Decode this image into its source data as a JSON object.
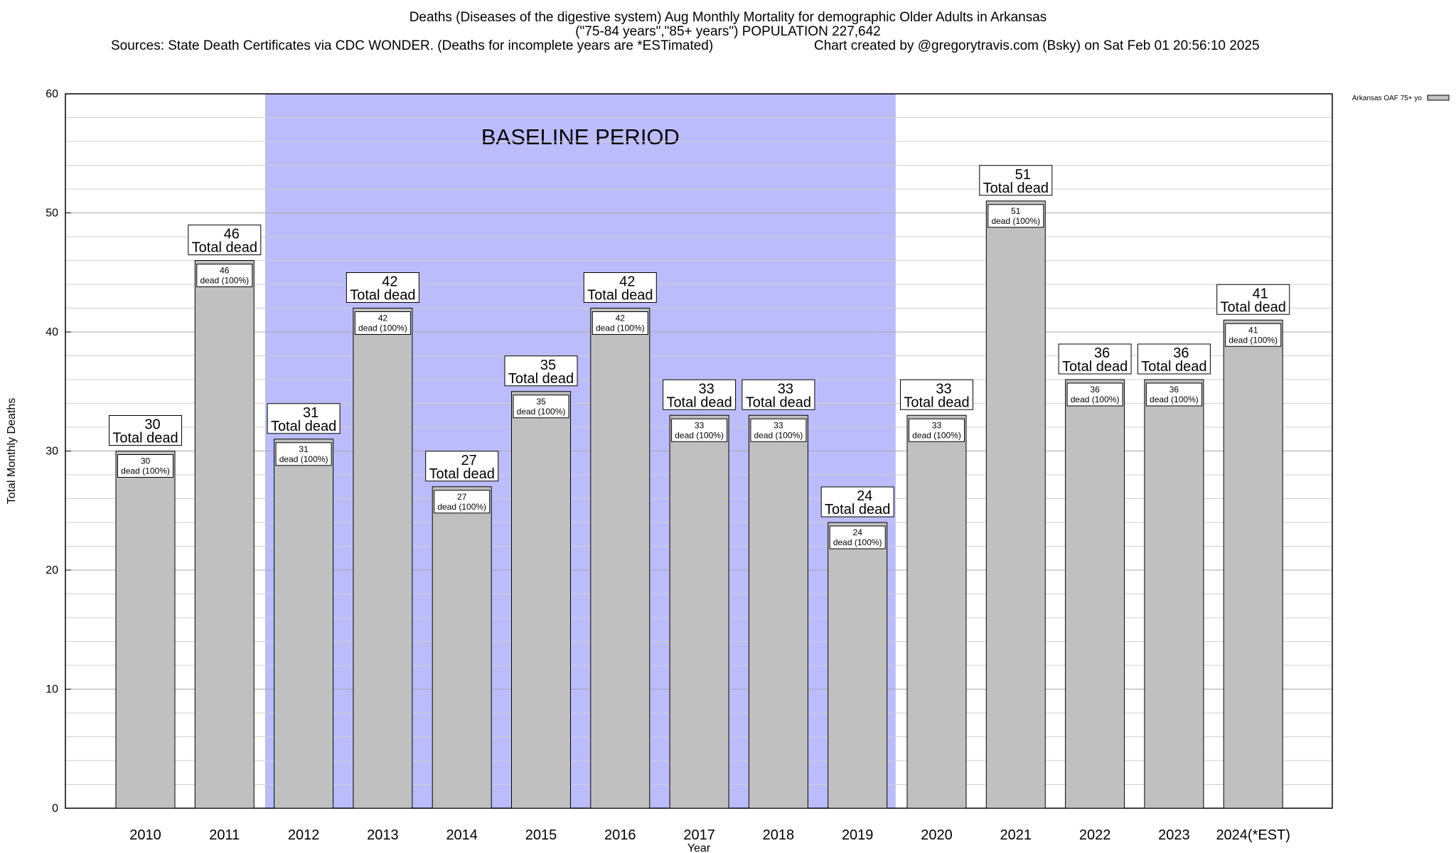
{
  "header": {
    "title_line1": "Deaths (Diseases of the digestive system) Aug Monthly Mortality for demographic Older Adults in Arkansas",
    "title_line2": "(\"75-84 years\",\"85+ years\") POPULATION 227,642",
    "sources": "Sources: State Death Certificates via CDC WONDER. (Deaths for incomplete years are *ESTimated)",
    "credit": "Chart created by @gregorytravis.com (Bsky) on Sat Feb 01 20:56:10 2025"
  },
  "chart_data": {
    "type": "bar",
    "categories": [
      "2010",
      "2011",
      "2012",
      "2013",
      "2014",
      "2015",
      "2016",
      "2017",
      "2018",
      "2019",
      "2020",
      "2021",
      "2022",
      "2023",
      "2024(*EST)"
    ],
    "series": [
      {
        "name": "Arkansas OAF 75+ yo",
        "values": [
          30,
          46,
          31,
          42,
          27,
          35,
          42,
          33,
          33,
          24,
          33,
          51,
          36,
          36,
          41
        ],
        "color": "#c0c0c0"
      }
    ],
    "xlabel": "Year",
    "ylabel": "Total Monthly Deaths",
    "ylim": [
      0,
      60
    ],
    "yticks": [
      0,
      10,
      20,
      30,
      40,
      50,
      60
    ],
    "grid": true,
    "legend_position": "top-right",
    "top_label_suffix": "Total dead",
    "inner_label_suffix": "dead (100%)",
    "baseline": {
      "label": "BASELINE PERIOD",
      "start": "2012",
      "end": "2019",
      "color": "#bcbcfc"
    }
  }
}
